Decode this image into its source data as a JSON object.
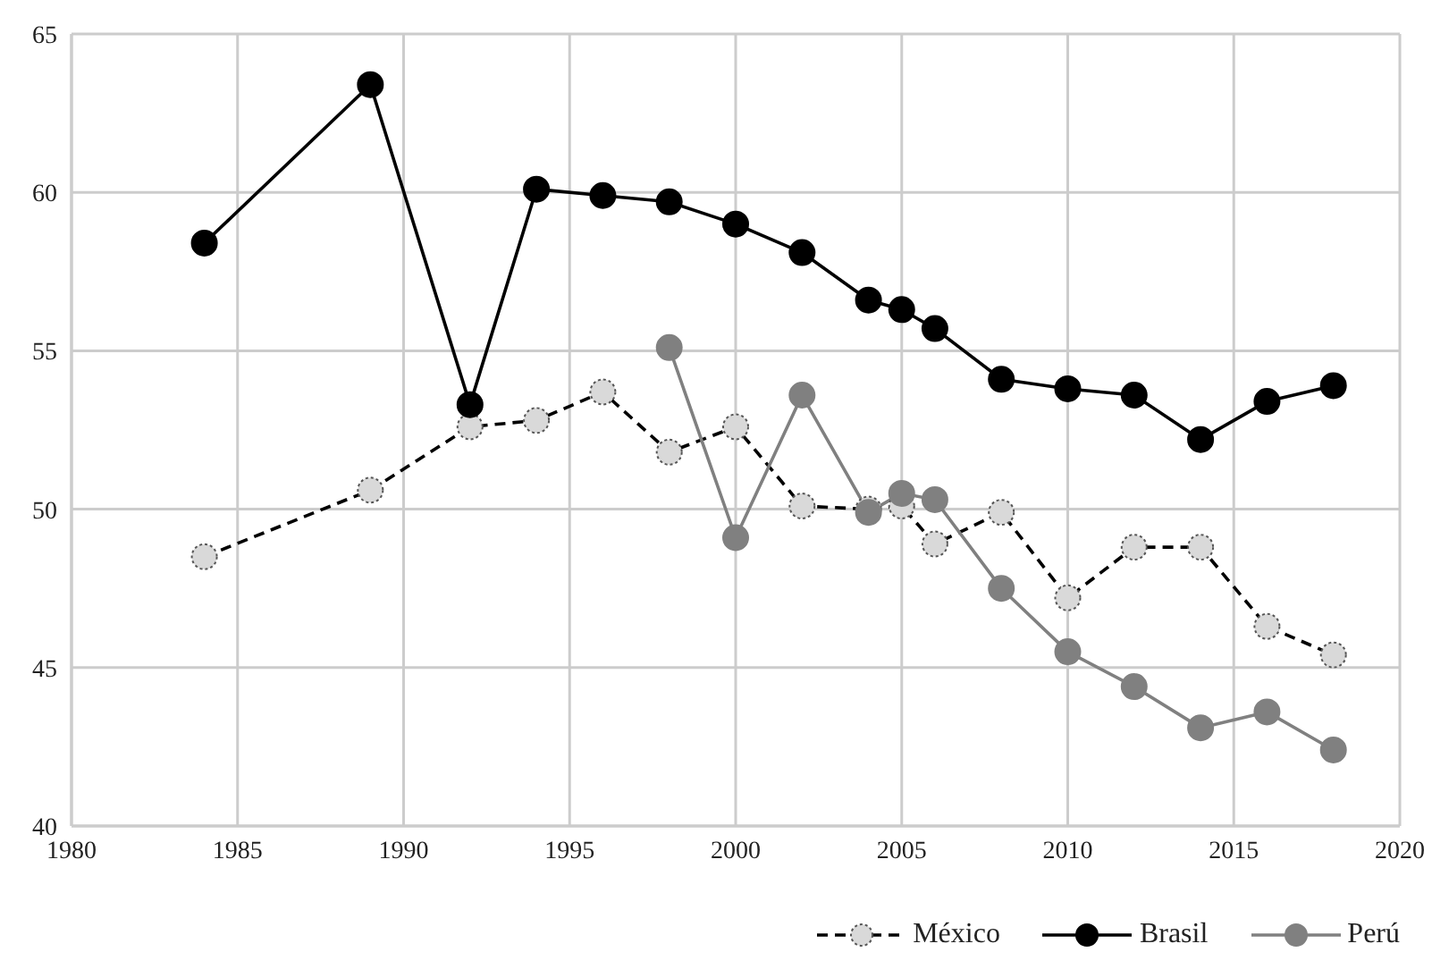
{
  "chart_data": {
    "type": "line",
    "series": [
      {
        "name": "México",
        "color": "#000000",
        "line_style": "dashed",
        "x": [
          1984,
          1989,
          1992,
          1994,
          1996,
          1998,
          2000,
          2002,
          2004,
          2005,
          2006,
          2008,
          2010,
          2012,
          2014,
          2016,
          2018
        ],
        "values": [
          48.5,
          50.6,
          52.6,
          52.8,
          53.7,
          51.8,
          52.6,
          50.1,
          50.0,
          50.1,
          48.9,
          49.9,
          47.2,
          48.8,
          48.8,
          46.3,
          45.4
        ]
      },
      {
        "name": "Brasil",
        "color": "#000000",
        "line_style": "solid",
        "x": [
          1984,
          1989,
          1992,
          1994,
          1996,
          1998,
          2000,
          2002,
          2004,
          2005,
          2006,
          2008,
          2010,
          2012,
          2014,
          2016,
          2018
        ],
        "values": [
          58.4,
          63.4,
          53.3,
          60.1,
          59.9,
          59.7,
          59.0,
          58.1,
          56.6,
          56.3,
          55.7,
          54.1,
          53.8,
          53.6,
          52.2,
          53.4,
          53.9
        ]
      },
      {
        "name": "Perú",
        "color": "#808080",
        "line_style": "solid",
        "x": [
          1998,
          2000,
          2002,
          2004,
          2005,
          2006,
          2008,
          2010,
          2012,
          2014,
          2016,
          2018
        ],
        "values": [
          55.1,
          49.1,
          53.6,
          49.9,
          50.5,
          50.3,
          47.5,
          45.5,
          44.4,
          43.1,
          43.6,
          42.4
        ]
      }
    ],
    "xlim": [
      1980,
      2020
    ],
    "xticks": [
      1980,
      1985,
      1990,
      1995,
      2000,
      2005,
      2010,
      2015,
      2020
    ],
    "ylim": [
      40,
      65
    ],
    "yticks": [
      40,
      45,
      50,
      55,
      60,
      65
    ],
    "grid": true,
    "legend": "bottom right",
    "marker": "circle"
  }
}
